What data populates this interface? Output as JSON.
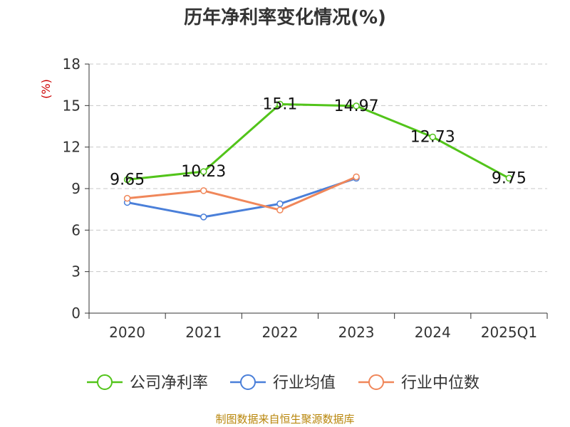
{
  "chart_data": {
    "type": "line",
    "title": "历年净利率变化情况(%)",
    "ylabel": "(%)",
    "xlabel": "",
    "ylim": [
      0,
      18
    ],
    "yticks": [
      0,
      3,
      6,
      9,
      12,
      15,
      18
    ],
    "categories": [
      "2020",
      "2021",
      "2022",
      "2023",
      "2024",
      "2025Q1"
    ],
    "grid": true,
    "legend_position": "bottom",
    "series": [
      {
        "name": "公司净利率",
        "color": "#52c41a",
        "values": [
          9.65,
          10.23,
          15.1,
          14.97,
          12.73,
          9.75
        ],
        "labels": [
          "9.65",
          "10.23",
          "15.1",
          "14.97",
          "12.73",
          "9.75"
        ]
      },
      {
        "name": "行业均值",
        "color": "#4a7fd9",
        "values": [
          8.0,
          6.95,
          7.9,
          9.75,
          null,
          null
        ],
        "labels": null
      },
      {
        "name": "行业中位数",
        "color": "#f0875a",
        "values": [
          8.3,
          8.85,
          7.45,
          9.85,
          null,
          null
        ],
        "labels": null
      }
    ]
  },
  "footer": {
    "source": "制图数据来自恒生聚源数据库"
  }
}
